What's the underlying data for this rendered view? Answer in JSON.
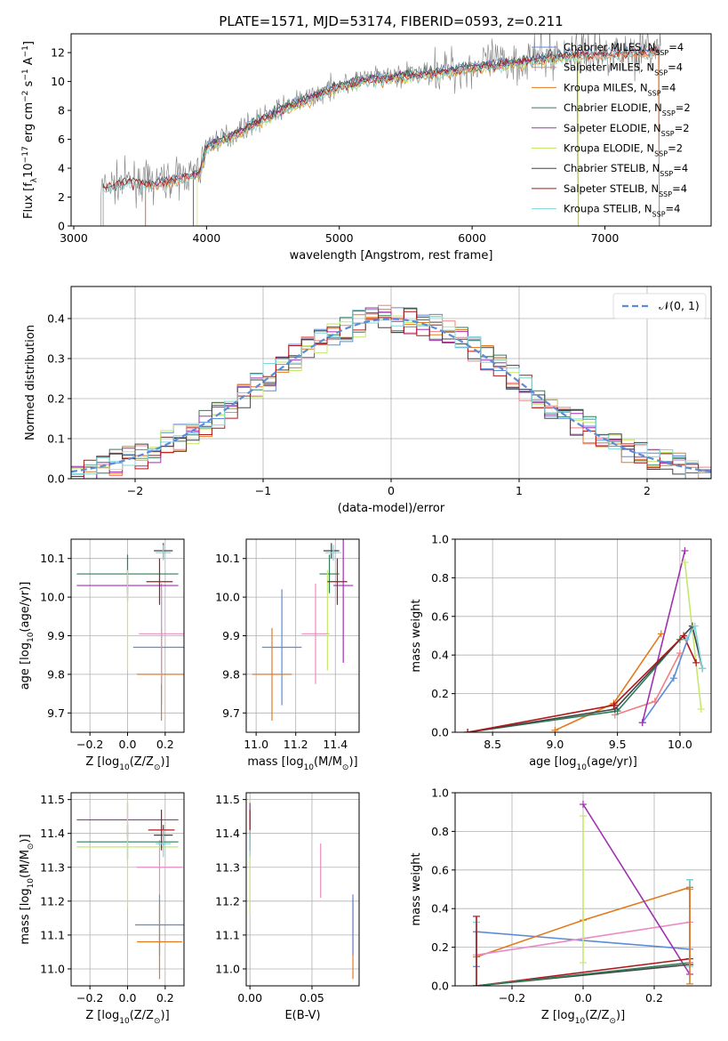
{
  "title": "PLATE=1571, MJD=53174, FIBERID=0593, z=0.211",
  "colors": {
    "chabrier_miles": "#5b8bd9",
    "salpeter_miles": "#f08080",
    "kroupa_miles": "#e07b20",
    "chabrier_elodie": "#2e7d5b",
    "salpeter_elodie": "#a030b0",
    "kroupa_elodie": "#c6e86a",
    "chabrier_stelib": "#444444",
    "salpeter_stelib": "#b01818",
    "kroupa_stelib": "#7fd6dc",
    "data": "#808080",
    "pink": "#e98bc4",
    "lime": "#9bc53d"
  },
  "chart_data": [
    {
      "type": "line",
      "panel": "spectrum",
      "xlabel": "wavelength [Angstrom, rest frame]",
      "ylabel": "Flux [f_λ 10^-17 erg cm^-2 s^-1 A^-1]",
      "xlim": [
        2980,
        7800
      ],
      "ylim": [
        0,
        13.3
      ],
      "xticks": [
        3000,
        4000,
        5000,
        6000,
        7000
      ],
      "yticks": [
        0,
        2,
        4,
        6,
        8,
        10,
        12
      ],
      "legend_position": "right",
      "legend": [
        {
          "label": "Chabrier MILES, N",
          "sub": "SSP",
          "tail": "=4",
          "color_key": "chabrier_miles"
        },
        {
          "label": "Salpeter MILES, N",
          "sub": "SSP",
          "tail": "=4",
          "color_key": "salpeter_miles"
        },
        {
          "label": "Kroupa MILES, N",
          "sub": "SSP",
          "tail": "=4",
          "color_key": "kroupa_miles"
        },
        {
          "label": "Chabrier ELODIE, N",
          "sub": "SSP",
          "tail": "=2",
          "color_key": "chabrier_elodie"
        },
        {
          "label": "Salpeter ELODIE, N",
          "sub": "SSP",
          "tail": "=2",
          "color_key": "salpeter_elodie"
        },
        {
          "label": "Kroupa ELODIE, N",
          "sub": "SSP",
          "tail": "=2",
          "color_key": "kroupa_elodie"
        },
        {
          "label": "Chabrier STELIB, N",
          "sub": "SSP",
          "tail": "=4",
          "color_key": "chabrier_stelib"
        },
        {
          "label": "Salpeter STELIB, N",
          "sub": "SSP",
          "tail": "=4",
          "color_key": "salpeter_stelib"
        },
        {
          "label": "Kroupa STELIB, N",
          "sub": "SSP",
          "tail": "=4",
          "color_key": "kroupa_stelib"
        }
      ],
      "continuum": [
        [
          3200,
          2.6
        ],
        [
          3400,
          3.1
        ],
        [
          3600,
          3.0
        ],
        [
          3800,
          3.4
        ],
        [
          3950,
          3.8
        ],
        [
          4000,
          5.6
        ],
        [
          4200,
          6.4
        ],
        [
          4400,
          7.4
        ],
        [
          4600,
          8.3
        ],
        [
          4800,
          9.0
        ],
        [
          5000,
          9.8
        ],
        [
          5200,
          10.2
        ],
        [
          5400,
          10.4
        ],
        [
          5600,
          10.6
        ],
        [
          5800,
          10.8
        ],
        [
          6000,
          11.1
        ],
        [
          6200,
          11.3
        ],
        [
          6400,
          11.5
        ],
        [
          6600,
          11.8
        ],
        [
          6800,
          12.0
        ],
        [
          7000,
          12.0
        ],
        [
          7200,
          12.1
        ],
        [
          7400,
          12.2
        ]
      ]
    },
    {
      "type": "histogram",
      "panel": "residuals",
      "xlabel": "(data-model)/error",
      "ylabel": "Normed distribution",
      "xlim": [
        -2.5,
        2.5
      ],
      "ylim": [
        0,
        0.48
      ],
      "xticks": [
        -2,
        -1,
        0,
        1,
        2
      ],
      "yticks": [
        0.0,
        0.1,
        0.2,
        0.3,
        0.4
      ],
      "legend": "N(0,1)",
      "legend_position": "top-right"
    },
    {
      "type": "scatter",
      "panel": "age-vs-Z",
      "xlabel": "Z [log10(Z/Z☉)]",
      "ylabel": "age [log10(age/yr)]",
      "xlim": [
        -0.3,
        0.3
      ],
      "ylim": [
        9.65,
        10.15
      ],
      "xticks": [
        -0.2,
        0.0,
        0.2
      ],
      "yticks": [
        9.7,
        9.8,
        9.9,
        10.0,
        10.1
      ],
      "points": [
        {
          "color_key": "chabrier_miles",
          "x": 0.18,
          "xerr": 0.15,
          "y": 9.87,
          "yerr": 0.15
        },
        {
          "color_key": "kroupa_miles",
          "x": 0.18,
          "xerr": 0.13,
          "y": 9.8,
          "yerr": 0.12
        },
        {
          "color_key": "pink",
          "x": 0.18,
          "xerr": 0.12,
          "y": 9.905,
          "yerr": 0.13
        },
        {
          "color_key": "chabrier_elodie",
          "x": 0.0,
          "xerr": 0.27,
          "y": 10.06,
          "yerr": 0.05
        },
        {
          "color_key": "salpeter_elodie",
          "x": 0.0,
          "xerr": 0.27,
          "y": 10.03,
          "yerr": 0.04
        },
        {
          "color_key": "kroupa_elodie",
          "x": 0.0,
          "xerr": 0.0,
          "y": 9.94,
          "yerr": 0.13
        },
        {
          "color_key": "chabrier_stelib",
          "x": 0.19,
          "xerr": 0.05,
          "y": 10.12,
          "yerr": 0.02
        },
        {
          "color_key": "salpeter_stelib",
          "x": 0.17,
          "xerr": 0.07,
          "y": 10.04,
          "yerr": 0.06
        },
        {
          "color_key": "kroupa_stelib",
          "x": 0.19,
          "xerr": 0.04,
          "y": 10.115,
          "yerr": 0.02
        }
      ]
    },
    {
      "type": "scatter",
      "panel": "age-vs-mass",
      "xlabel": "mass [log10(M/M☉)]",
      "ylabel": "",
      "xlim": [
        10.95,
        11.52
      ],
      "ylim": [
        9.65,
        10.15
      ],
      "xticks": [
        11.0,
        11.2,
        11.4
      ],
      "yticks": [
        9.7,
        9.8,
        9.9,
        10.0,
        10.1
      ],
      "points": [
        {
          "color_key": "chabrier_miles",
          "x": 11.13,
          "xerr": 0.1,
          "y": 9.87,
          "yerr": 0.15
        },
        {
          "color_key": "kroupa_miles",
          "x": 11.08,
          "xerr": 0.1,
          "y": 9.8,
          "yerr": 0.12
        },
        {
          "color_key": "pink",
          "x": 11.3,
          "xerr": 0.07,
          "y": 9.905,
          "yerr": 0.13
        },
        {
          "color_key": "chabrier_elodie",
          "x": 11.37,
          "xerr": 0.05,
          "y": 10.06,
          "yerr": 0.05
        },
        {
          "color_key": "salpeter_elodie",
          "x": 11.44,
          "xerr": 0.05,
          "y": 10.03,
          "yerr": 0.2
        },
        {
          "color_key": "kroupa_elodie",
          "x": 11.36,
          "xerr": 0.0,
          "y": 9.94,
          "yerr": 0.13
        },
        {
          "color_key": "chabrier_stelib",
          "x": 11.38,
          "xerr": 0.04,
          "y": 10.12,
          "yerr": 0.02
        },
        {
          "color_key": "salpeter_stelib",
          "x": 11.41,
          "xerr": 0.05,
          "y": 10.04,
          "yerr": 0.06
        },
        {
          "color_key": "kroupa_stelib",
          "x": 11.39,
          "xerr": 0.04,
          "y": 10.115,
          "yerr": 0.02
        }
      ]
    },
    {
      "type": "line",
      "panel": "mass-weight-vs-age",
      "xlabel": "age [log10(age/yr)]",
      "ylabel": "mass weight",
      "xlim": [
        8.2,
        10.25
      ],
      "ylim": [
        0,
        1.0
      ],
      "xticks": [
        8.5,
        9.0,
        9.5,
        10.0
      ],
      "yticks": [
        0.0,
        0.2,
        0.4,
        0.6,
        0.8,
        1.0
      ],
      "series": [
        {
          "color_key": "chabrier_miles",
          "x": [
            9.7,
            9.95,
            10.1
          ],
          "y": [
            0.05,
            0.28,
            0.55
          ]
        },
        {
          "color_key": "salpeter_miles",
          "x": [
            9.48,
            9.8,
            10.0
          ],
          "y": [
            0.09,
            0.16,
            0.41
          ]
        },
        {
          "color_key": "kroupa_miles",
          "x": [
            9.0,
            9.47,
            9.85
          ],
          "y": [
            0.01,
            0.15,
            0.51
          ]
        },
        {
          "color_key": "chabrier_elodie",
          "x": [
            8.3,
            9.5,
            10.0
          ],
          "y": [
            0.0,
            0.11,
            0.48
          ]
        },
        {
          "color_key": "salpeter_elodie",
          "x": [
            9.7,
            10.04
          ],
          "y": [
            0.05,
            0.94
          ]
        },
        {
          "color_key": "kroupa_elodie",
          "x": [
            10.04,
            10.17
          ],
          "y": [
            0.88,
            0.12
          ]
        },
        {
          "color_key": "chabrier_stelib",
          "x": [
            8.3,
            9.48,
            10.1,
            10.18
          ],
          "y": [
            0.0,
            0.12,
            0.55,
            0.33
          ]
        },
        {
          "color_key": "salpeter_stelib",
          "x": [
            8.3,
            9.47,
            10.03,
            10.13
          ],
          "y": [
            0.0,
            0.14,
            0.5,
            0.36
          ]
        },
        {
          "color_key": "kroupa_stelib",
          "x": [
            10.05,
            10.12,
            10.18
          ],
          "y": [
            0.48,
            0.55,
            0.33
          ]
        }
      ]
    },
    {
      "type": "scatter",
      "panel": "mass-vs-Z",
      "xlabel": "Z [log10(Z/Z☉)]",
      "ylabel": "mass [log10(M/M☉)]",
      "xlim": [
        -0.3,
        0.3
      ],
      "ylim": [
        10.95,
        11.52
      ],
      "xticks": [
        -0.2,
        0.0,
        0.2
      ],
      "yticks": [
        11.0,
        11.1,
        11.2,
        11.3,
        11.4,
        11.5
      ],
      "points": [
        {
          "color_key": "chabrier_miles",
          "x": 0.17,
          "xerr": 0.13,
          "y": 11.13,
          "yerr": 0.09
        },
        {
          "color_key": "kroupa_miles",
          "x": 0.17,
          "xerr": 0.12,
          "y": 11.08,
          "yerr": 0.11
        },
        {
          "color_key": "pink",
          "x": 0.17,
          "xerr": 0.12,
          "y": 11.3,
          "yerr": 0.08
        },
        {
          "color_key": "chabrier_elodie",
          "x": 0.0,
          "xerr": 0.27,
          "y": 11.375,
          "yerr": 0.05
        },
        {
          "color_key": "salpeter_elodie",
          "x": 0.0,
          "xerr": 0.27,
          "y": 11.44,
          "yerr": 0.05
        },
        {
          "color_key": "kroupa_elodie",
          "x": 0.0,
          "xerr": 0.27,
          "y": 11.36,
          "yerr": 0.18
        },
        {
          "color_key": "chabrier_stelib",
          "x": 0.19,
          "xerr": 0.05,
          "y": 11.395,
          "yerr": 0.03
        },
        {
          "color_key": "salpeter_stelib",
          "x": 0.18,
          "xerr": 0.07,
          "y": 11.41,
          "yerr": 0.06
        },
        {
          "color_key": "kroupa_stelib",
          "x": 0.19,
          "xerr": 0.04,
          "y": 11.37,
          "yerr": 0.04
        }
      ]
    },
    {
      "type": "scatter",
      "panel": "mass-vs-EBV",
      "xlabel": "E(B-V)",
      "ylabel": "",
      "xlim": [
        -0.003,
        0.088
      ],
      "ylim": [
        10.95,
        11.52
      ],
      "xticks": [
        0.0,
        0.05
      ],
      "yticks": [
        11.0,
        11.1,
        11.2,
        11.3,
        11.4,
        11.5
      ],
      "points": [
        {
          "color_key": "pink",
          "x": 0.057,
          "y": 11.29,
          "yerr": 0.08
        },
        {
          "color_key": "kroupa_miles",
          "x": 0.083,
          "y": 11.09,
          "yerr": 0.12
        },
        {
          "color_key": "chabrier_miles",
          "x": 0.083,
          "y": 11.13,
          "yerr": 0.09
        },
        {
          "color_key": "kroupa_elodie",
          "x": 0.0,
          "y": 11.33,
          "yerr": 0.17
        },
        {
          "color_key": "salpeter_elodie",
          "x": 0.0,
          "y": 11.44,
          "yerr": 0.05
        },
        {
          "color_key": "salpeter_stelib",
          "x": 0.0,
          "y": 11.41,
          "yerr": 0.06
        },
        {
          "color_key": "kroupa_stelib",
          "x": 0.0,
          "y": 11.37,
          "yerr": 0.04
        }
      ]
    },
    {
      "type": "line",
      "panel": "mass-weight-vs-Z",
      "xlabel": "Z [log10(Z/Z☉)]",
      "ylabel": "mass weight",
      "xlim": [
        -0.36,
        0.36
      ],
      "ylim": [
        0,
        1.0
      ],
      "xticks": [
        -0.2,
        0.0,
        0.2
      ],
      "yticks": [
        0.0,
        0.2,
        0.4,
        0.6,
        0.8,
        1.0
      ],
      "series": [
        {
          "color_key": "chabrier_miles",
          "x": [
            -0.3,
            0.3
          ],
          "y": [
            0.28,
            0.19
          ]
        },
        {
          "color_key": "kroupa_miles",
          "x": [
            -0.3,
            0.0,
            0.3
          ],
          "y": [
            0.15,
            0.34,
            0.51
          ]
        },
        {
          "color_key": "pink",
          "x": [
            -0.3,
            0.3
          ],
          "y": [
            0.16,
            0.33
          ]
        },
        {
          "color_key": "salpeter_elodie",
          "x": [
            0.0,
            0.3
          ],
          "y": [
            0.94,
            0.06
          ]
        },
        {
          "color_key": "chabrier_stelib",
          "x": [
            -0.3,
            0.3
          ],
          "y": [
            0.0,
            0.11
          ]
        },
        {
          "color_key": "salpeter_stelib",
          "x": [
            -0.3,
            0.3
          ],
          "y": [
            0.0,
            0.14
          ]
        },
        {
          "color_key": "chabrier_elodie",
          "x": [
            -0.3,
            0.3
          ],
          "y": [
            0.0,
            0.12
          ]
        }
      ],
      "verticals": [
        {
          "color_key": "kroupa_elodie",
          "x": 0.0,
          "y0": 0.12,
          "y1": 0.88
        },
        {
          "color_key": "kroupa_stelib",
          "x": -0.3,
          "y0": 0.0,
          "y1": 0.33
        },
        {
          "color_key": "chabrier_stelib",
          "x": 0.3,
          "y0": 0.11,
          "y1": 0.55
        },
        {
          "color_key": "kroupa_stelib",
          "x": 0.3,
          "y0": 0.1,
          "y1": 0.55
        },
        {
          "color_key": "chabrier_miles",
          "x": -0.3,
          "y0": 0.1,
          "y1": 0.28
        },
        {
          "color_key": "salpeter_stelib",
          "x": -0.3,
          "y0": 0.0,
          "y1": 0.36
        },
        {
          "color_key": "salpeter_miles",
          "x": 0.3,
          "y0": 0.12,
          "y1": 0.5
        },
        {
          "color_key": "kroupa_miles",
          "x": 0.3,
          "y0": 0.01,
          "y1": 0.51
        }
      ]
    }
  ]
}
